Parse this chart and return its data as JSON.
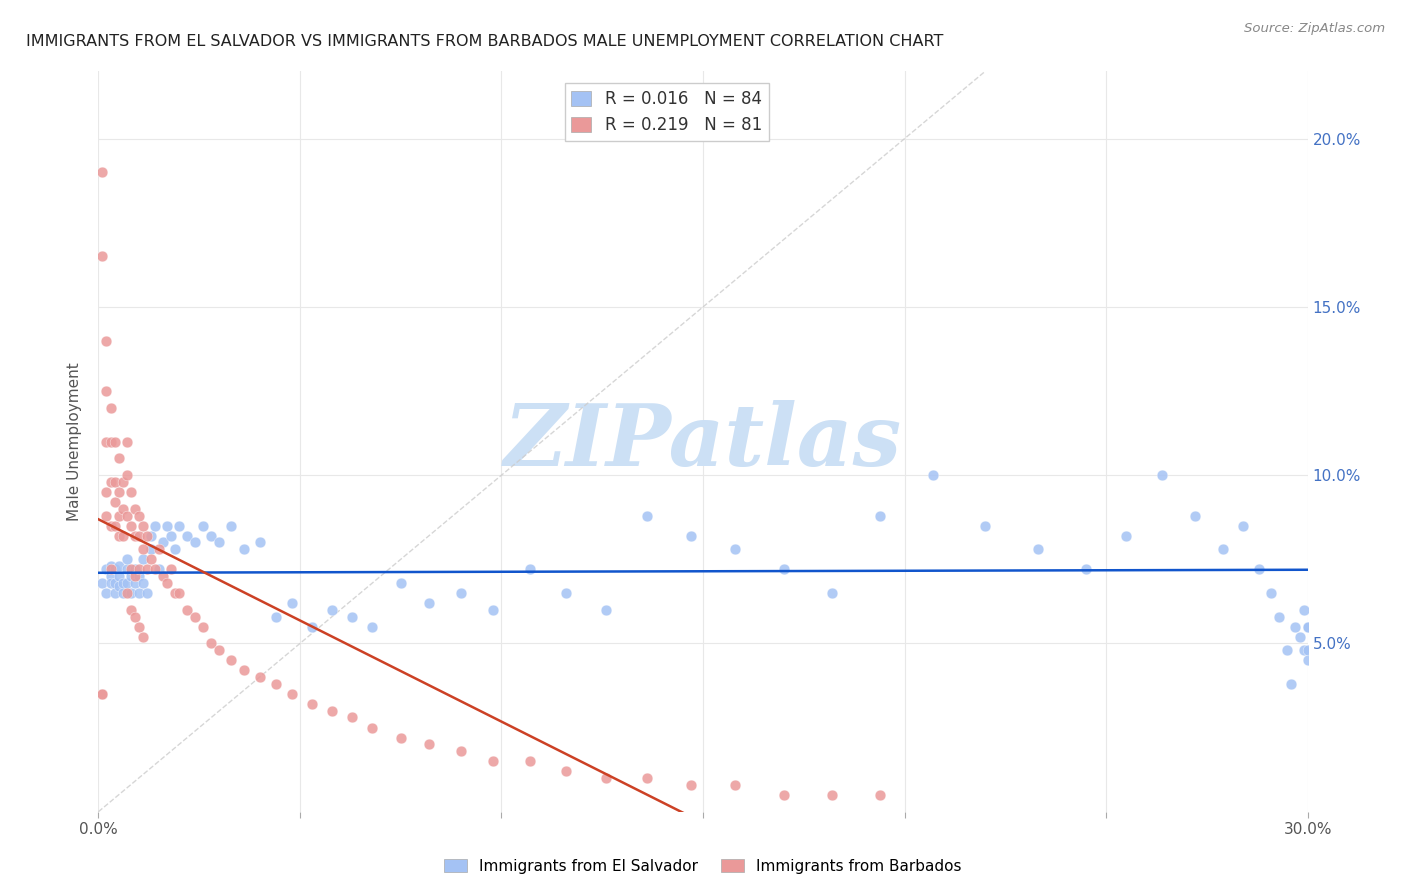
{
  "title": "IMMIGRANTS FROM EL SALVADOR VS IMMIGRANTS FROM BARBADOS MALE UNEMPLOYMENT CORRELATION CHART",
  "source": "Source: ZipAtlas.com",
  "ylabel": "Male Unemployment",
  "legend_R_blue": "0.016",
  "legend_N_blue": "84",
  "legend_R_pink": "0.219",
  "legend_N_pink": "81",
  "blue_color": "#a4c2f4",
  "pink_color": "#ea9999",
  "blue_line_color": "#1155cc",
  "pink_line_color": "#cc4125",
  "diagonal_line_color": "#cccccc",
  "watermark": "ZIPatlas",
  "watermark_color": "#cce0f5",
  "xlim": [
    0.0,
    0.3
  ],
  "ylim": [
    0.0,
    0.22
  ],
  "right_ytick_vals": [
    0.05,
    0.1,
    0.15,
    0.2
  ],
  "right_ytick_labels": [
    "5.0%",
    "10.0%",
    "15.0%",
    "20.0%"
  ],
  "xtick_vals": [
    0.0,
    0.05,
    0.1,
    0.15,
    0.2,
    0.25,
    0.3
  ],
  "blue_x": [
    0.001,
    0.002,
    0.002,
    0.003,
    0.003,
    0.003,
    0.004,
    0.004,
    0.004,
    0.005,
    0.005,
    0.005,
    0.006,
    0.006,
    0.007,
    0.007,
    0.007,
    0.008,
    0.008,
    0.009,
    0.009,
    0.01,
    0.01,
    0.011,
    0.011,
    0.012,
    0.013,
    0.013,
    0.014,
    0.015,
    0.016,
    0.017,
    0.018,
    0.019,
    0.02,
    0.022,
    0.024,
    0.026,
    0.028,
    0.03,
    0.033,
    0.036,
    0.04,
    0.044,
    0.048,
    0.053,
    0.058,
    0.063,
    0.068,
    0.075,
    0.082,
    0.09,
    0.098,
    0.107,
    0.116,
    0.126,
    0.136,
    0.147,
    0.158,
    0.17,
    0.182,
    0.194,
    0.207,
    0.22,
    0.233,
    0.245,
    0.255,
    0.264,
    0.272,
    0.279,
    0.284,
    0.288,
    0.291,
    0.293,
    0.295,
    0.296,
    0.297,
    0.298,
    0.299,
    0.299,
    0.3,
    0.3,
    0.3,
    0.3
  ],
  "blue_y": [
    0.068,
    0.072,
    0.065,
    0.07,
    0.068,
    0.073,
    0.065,
    0.068,
    0.072,
    0.067,
    0.07,
    0.073,
    0.065,
    0.068,
    0.072,
    0.068,
    0.075,
    0.065,
    0.07,
    0.068,
    0.072,
    0.065,
    0.07,
    0.068,
    0.075,
    0.065,
    0.082,
    0.078,
    0.085,
    0.072,
    0.08,
    0.085,
    0.082,
    0.078,
    0.085,
    0.082,
    0.08,
    0.085,
    0.082,
    0.08,
    0.085,
    0.078,
    0.08,
    0.058,
    0.062,
    0.055,
    0.06,
    0.058,
    0.055,
    0.068,
    0.062,
    0.065,
    0.06,
    0.072,
    0.065,
    0.06,
    0.088,
    0.082,
    0.078,
    0.072,
    0.065,
    0.088,
    0.1,
    0.085,
    0.078,
    0.072,
    0.082,
    0.1,
    0.088,
    0.078,
    0.085,
    0.072,
    0.065,
    0.058,
    0.048,
    0.038,
    0.055,
    0.052,
    0.048,
    0.06,
    0.055,
    0.045,
    0.055,
    0.048
  ],
  "pink_x": [
    0.001,
    0.001,
    0.001,
    0.001,
    0.002,
    0.002,
    0.002,
    0.002,
    0.002,
    0.003,
    0.003,
    0.003,
    0.003,
    0.003,
    0.004,
    0.004,
    0.004,
    0.004,
    0.005,
    0.005,
    0.005,
    0.005,
    0.006,
    0.006,
    0.006,
    0.007,
    0.007,
    0.007,
    0.008,
    0.008,
    0.008,
    0.009,
    0.009,
    0.009,
    0.01,
    0.01,
    0.01,
    0.011,
    0.011,
    0.012,
    0.012,
    0.013,
    0.014,
    0.015,
    0.016,
    0.017,
    0.018,
    0.019,
    0.02,
    0.022,
    0.024,
    0.026,
    0.028,
    0.03,
    0.033,
    0.036,
    0.04,
    0.044,
    0.048,
    0.053,
    0.058,
    0.063,
    0.068,
    0.075,
    0.082,
    0.09,
    0.098,
    0.107,
    0.116,
    0.126,
    0.136,
    0.147,
    0.158,
    0.17,
    0.182,
    0.194,
    0.007,
    0.008,
    0.009,
    0.01,
    0.011
  ],
  "pink_y": [
    0.19,
    0.165,
    0.035,
    0.035,
    0.14,
    0.125,
    0.11,
    0.095,
    0.088,
    0.12,
    0.11,
    0.098,
    0.085,
    0.072,
    0.11,
    0.098,
    0.092,
    0.085,
    0.105,
    0.095,
    0.088,
    0.082,
    0.098,
    0.09,
    0.082,
    0.11,
    0.1,
    0.088,
    0.095,
    0.085,
    0.072,
    0.09,
    0.082,
    0.07,
    0.088,
    0.082,
    0.072,
    0.085,
    0.078,
    0.082,
    0.072,
    0.075,
    0.072,
    0.078,
    0.07,
    0.068,
    0.072,
    0.065,
    0.065,
    0.06,
    0.058,
    0.055,
    0.05,
    0.048,
    0.045,
    0.042,
    0.04,
    0.038,
    0.035,
    0.032,
    0.03,
    0.028,
    0.025,
    0.022,
    0.02,
    0.018,
    0.015,
    0.015,
    0.012,
    0.01,
    0.01,
    0.008,
    0.008,
    0.005,
    0.005,
    0.005,
    0.065,
    0.06,
    0.058,
    0.055,
    0.052
  ]
}
